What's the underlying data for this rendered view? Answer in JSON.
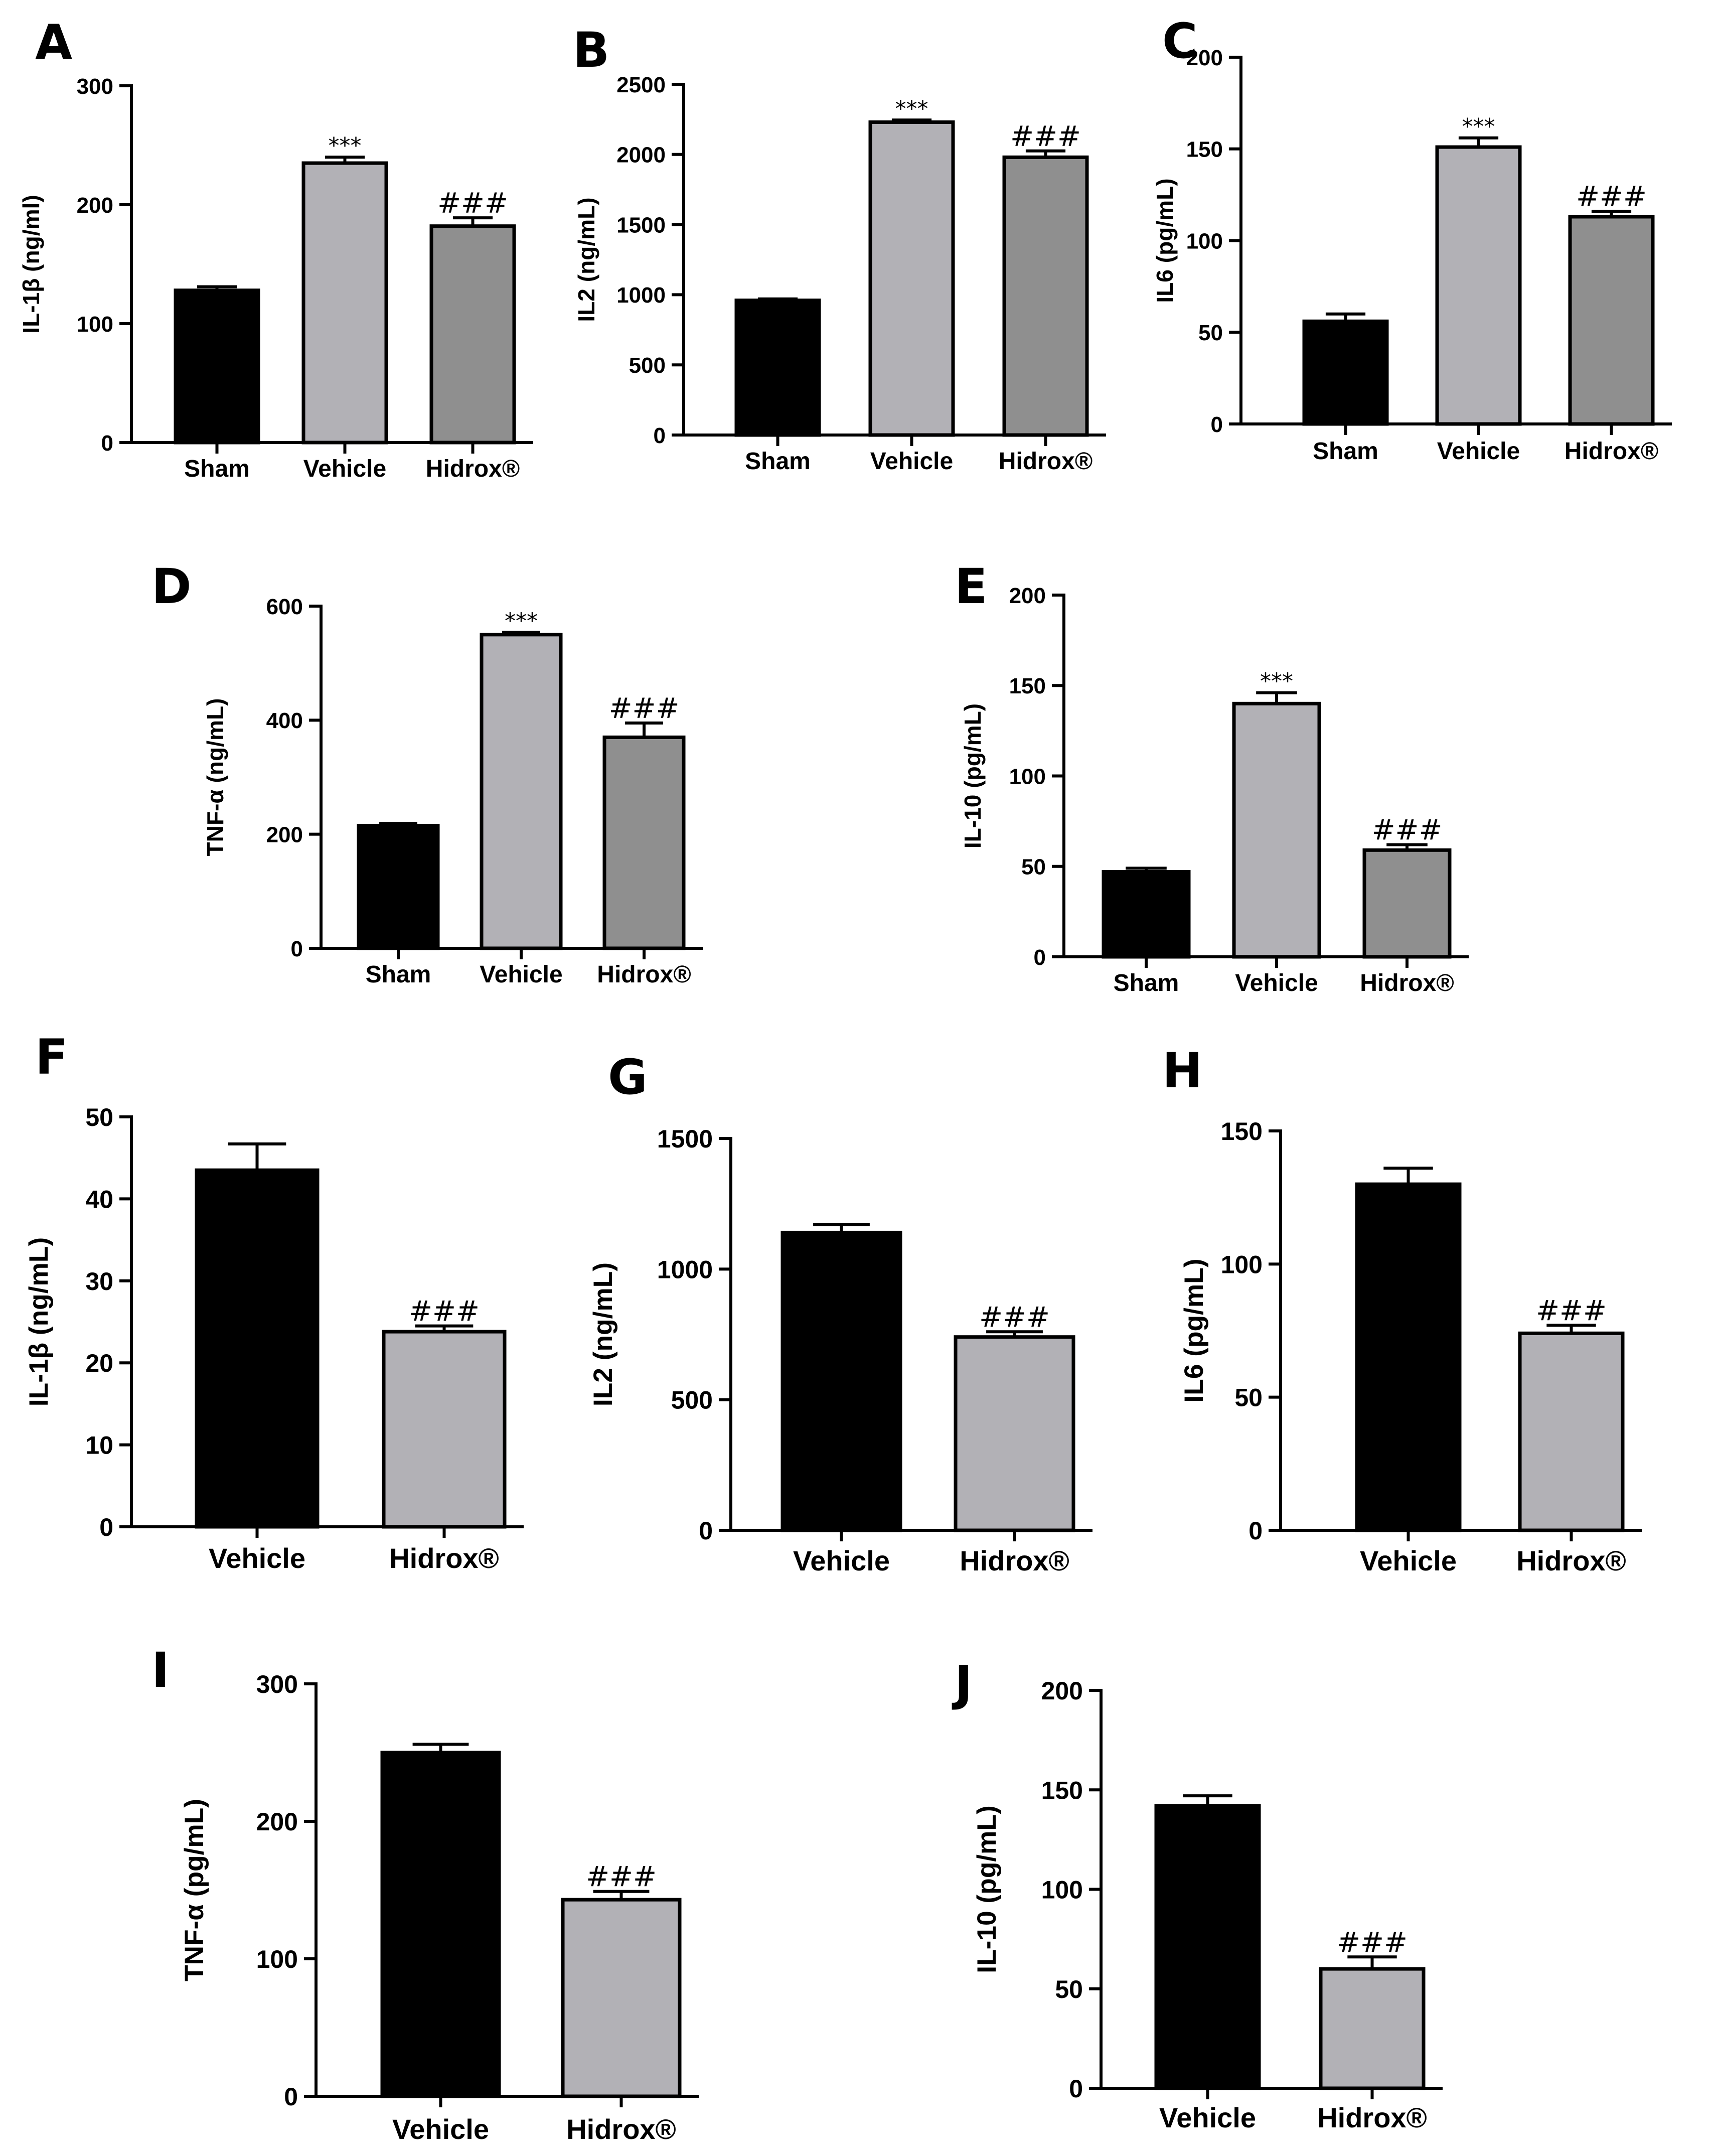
{
  "colors": {
    "sham": "#000000",
    "vehicle_three": "#b2b1b6",
    "hidrox_three": "#8f8f8f",
    "vehicle_two": "#000000",
    "hidrox_two": "#b2b1b6",
    "axis": "#000000"
  },
  "chart_data": [
    {
      "id": "A",
      "type": "bar",
      "ylabel": "IL-1β (ng/ml)",
      "ylim": [
        0,
        300
      ],
      "yticks": [
        0,
        100,
        200,
        300
      ],
      "categories": [
        "Sham",
        "Vehicle",
        "Hidrox®"
      ],
      "values": [
        128,
        235,
        182
      ],
      "errors": [
        3,
        5,
        7
      ],
      "annotations": [
        "",
        "***",
        "###"
      ],
      "fills": [
        "sham",
        "vehicle_three",
        "hidrox_three"
      ]
    },
    {
      "id": "B",
      "type": "bar",
      "ylabel": "IL2 (ng/mL)",
      "ylim": [
        0,
        2500
      ],
      "yticks": [
        0,
        500,
        1000,
        1500,
        2000,
        2500
      ],
      "categories": [
        "Sham",
        "Vehicle",
        "Hidrox®"
      ],
      "values": [
        960,
        2230,
        1980
      ],
      "errors": [
        10,
        15,
        45
      ],
      "annotations": [
        "",
        "***",
        "###"
      ],
      "fills": [
        "sham",
        "vehicle_three",
        "hidrox_three"
      ]
    },
    {
      "id": "C",
      "type": "bar",
      "ylabel": "IL6 (pg/mL)",
      "ylim": [
        0,
        200
      ],
      "yticks": [
        0,
        50,
        100,
        150,
        200
      ],
      "categories": [
        "Sham",
        "Vehicle",
        "Hidrox®"
      ],
      "values": [
        56,
        151,
        113
      ],
      "errors": [
        4,
        5,
        3
      ],
      "annotations": [
        "",
        "***",
        "###"
      ],
      "fills": [
        "sham",
        "vehicle_three",
        "hidrox_three"
      ]
    },
    {
      "id": "D",
      "type": "bar",
      "ylabel": "TNF-α (ng/mL)",
      "ylim": [
        0,
        600
      ],
      "yticks": [
        0,
        200,
        400,
        600
      ],
      "categories": [
        "Sham",
        "Vehicle",
        "Hidrox®"
      ],
      "values": [
        215,
        550,
        370
      ],
      "errors": [
        4,
        4,
        25
      ],
      "annotations": [
        "",
        "***",
        "###"
      ],
      "fills": [
        "sham",
        "vehicle_three",
        "hidrox_three"
      ]
    },
    {
      "id": "E",
      "type": "bar",
      "ylabel": "IL-10 (pg/mL)",
      "ylim": [
        0,
        200
      ],
      "yticks": [
        0,
        50,
        100,
        150,
        200
      ],
      "categories": [
        "Sham",
        "Vehicle",
        "Hidrox®"
      ],
      "values": [
        47,
        140,
        59
      ],
      "errors": [
        2,
        6,
        3
      ],
      "annotations": [
        "",
        "***",
        "###"
      ],
      "fills": [
        "sham",
        "vehicle_three",
        "hidrox_three"
      ]
    },
    {
      "id": "F",
      "type": "bar",
      "ylabel": "IL-1β (ng/mL)",
      "ylim": [
        0,
        50
      ],
      "yticks": [
        0,
        10,
        20,
        30,
        40,
        50
      ],
      "categories": [
        "Vehicle",
        "Hidrox®"
      ],
      "values": [
        43.5,
        23.8
      ],
      "errors": [
        3.2,
        0.7
      ],
      "annotations": [
        "",
        "###"
      ],
      "fills": [
        "vehicle_two",
        "hidrox_two"
      ]
    },
    {
      "id": "G",
      "type": "bar",
      "ylabel": "IL2 (ng/mL)",
      "ylim": [
        0,
        1500
      ],
      "yticks": [
        0,
        500,
        1000,
        1500
      ],
      "categories": [
        "Vehicle",
        "Hidrox®"
      ],
      "values": [
        1140,
        740
      ],
      "errors": [
        30,
        20
      ],
      "annotations": [
        "",
        "###"
      ],
      "fills": [
        "vehicle_two",
        "hidrox_two"
      ]
    },
    {
      "id": "H",
      "type": "bar",
      "ylabel": "IL6 (pg/mL)",
      "ylim": [
        0,
        150
      ],
      "yticks": [
        0,
        50,
        100,
        150
      ],
      "categories": [
        "Vehicle",
        "Hidrox®"
      ],
      "values": [
        130,
        74
      ],
      "errors": [
        6,
        3
      ],
      "annotations": [
        "",
        "###"
      ],
      "fills": [
        "vehicle_two",
        "hidrox_two"
      ]
    },
    {
      "id": "I",
      "type": "bar",
      "ylabel": "TNF-α (pg/mL)",
      "ylim": [
        0,
        300
      ],
      "yticks": [
        0,
        100,
        200,
        300
      ],
      "categories": [
        "Vehicle",
        "Hidrox®"
      ],
      "values": [
        250,
        143
      ],
      "errors": [
        6,
        6
      ],
      "annotations": [
        "",
        "###"
      ],
      "fills": [
        "vehicle_two",
        "hidrox_two"
      ]
    },
    {
      "id": "J",
      "type": "bar",
      "ylabel": "IL-10 (pg/mL)",
      "ylim": [
        0,
        200
      ],
      "yticks": [
        0,
        50,
        100,
        150,
        200
      ],
      "categories": [
        "Vehicle",
        "Hidrox®"
      ],
      "values": [
        142,
        60
      ],
      "errors": [
        5,
        6
      ],
      "annotations": [
        "",
        "###"
      ],
      "fills": [
        "vehicle_two",
        "hidrox_two"
      ]
    }
  ]
}
